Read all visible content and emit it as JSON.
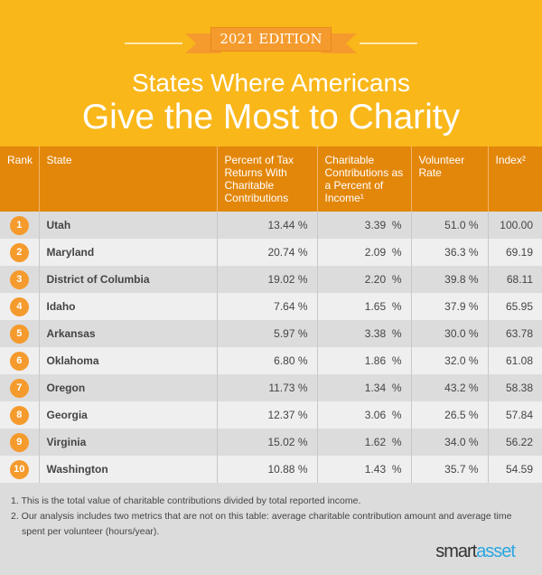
{
  "header": {
    "edition": "2021 EDITION",
    "title_line1": "States Where Americans",
    "title_line2": "Give the Most to Charity"
  },
  "colors": {
    "header_bg": "#f9b71a",
    "table_header_bg": "#e3870a",
    "badge": "#f59a2c",
    "logo_accent": "#2aa7e0"
  },
  "chart_data": {
    "type": "table",
    "columns": [
      "Rank",
      "State",
      "Percent of Tax Returns With Charitable Contributions",
      "Charitable Contributions as a Percent of Income¹",
      "Volunteer Rate",
      "Index²"
    ],
    "rows": [
      [
        "1",
        "Utah",
        "13.44 %",
        "3.39  %",
        "51.0 %",
        "100.00"
      ],
      [
        "2",
        "Maryland",
        "20.74 %",
        "2.09  %",
        "36.3 %",
        "69.19"
      ],
      [
        "3",
        "District of Columbia",
        "19.02 %",
        "2.20  %",
        "39.8 %",
        "68.11"
      ],
      [
        "4",
        "Idaho",
        "7.64 %",
        "1.65  %",
        "37.9 %",
        "65.95"
      ],
      [
        "5",
        "Arkansas",
        "5.97 %",
        "3.38  %",
        "30.0 %",
        "63.78"
      ],
      [
        "6",
        "Oklahoma",
        "6.80 %",
        "1.86  %",
        "32.0 %",
        "61.08"
      ],
      [
        "7",
        "Oregon",
        "11.73 %",
        "1.34  %",
        "43.2 %",
        "58.38"
      ],
      [
        "8",
        "Georgia",
        "12.37 %",
        "3.06  %",
        "26.5 %",
        "57.84"
      ],
      [
        "9",
        "Virginia",
        "15.02 %",
        "1.62  %",
        "34.0 %",
        "56.22"
      ],
      [
        "10",
        "Washington",
        "10.88 %",
        "1.43  %",
        "35.7 %",
        "54.59"
      ]
    ]
  },
  "footnotes": [
    "1. This is the total value of charitable contributions divided by total reported income.",
    "2. Our analysis includes two metrics that are not on this table: average charitable contribution amount and average time spent per volunteer (hours/year)."
  ],
  "logo": {
    "part1": "smart",
    "part2": "asset"
  }
}
